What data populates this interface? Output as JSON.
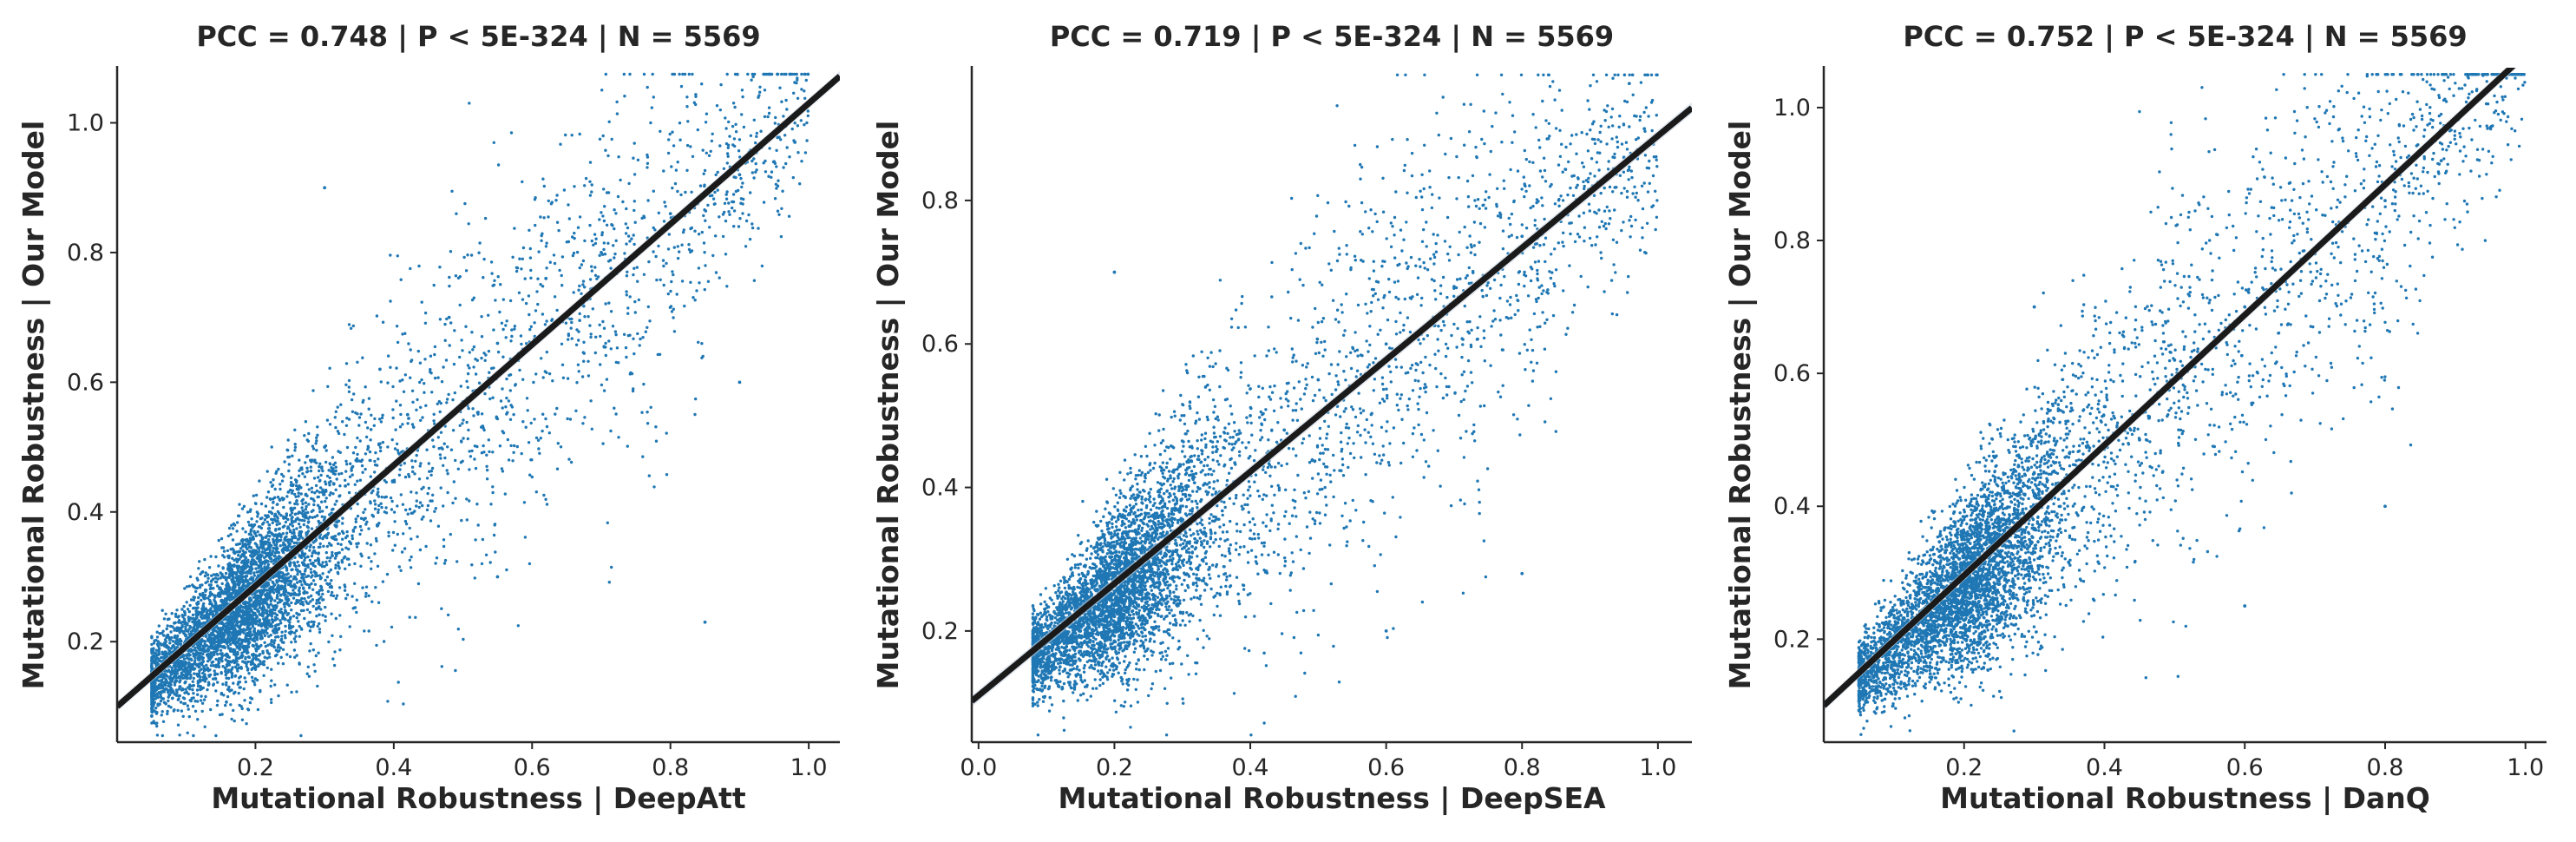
{
  "chart_data": [
    {
      "type": "scatter",
      "title": "PCC =  0.748 | P <  5E-324 | N = 5569",
      "xlabel": "Mutational Robustness | DeepAtt",
      "ylabel": "Mutational Robustness | Our Model",
      "xlim": [
        0.0,
        1.045
      ],
      "ylim": [
        0.045,
        1.085
      ],
      "xticks": [
        0.2,
        0.4,
        0.6,
        0.8,
        1.0
      ],
      "xtick_labels": [
        "0.2",
        "0.4",
        "0.6",
        "0.8",
        "1.0"
      ],
      "yticks": [
        0.2,
        0.4,
        0.6,
        0.8,
        1.0
      ],
      "ytick_labels": [
        "0.2",
        "0.4",
        "0.6",
        "0.8",
        "1.0"
      ],
      "grid": false,
      "point_color": "#1f77b4",
      "line_color": "#1a1a1a",
      "n_points": 5569,
      "pcc": 0.748,
      "regression": {
        "slope": 0.93,
        "intercept": 0.1
      },
      "x_distribution": {
        "min": 0.05,
        "max": 1.0,
        "mode": 0.16
      },
      "sample_points": [
        {
          "x": 0.1,
          "y": 0.15
        },
        {
          "x": 0.12,
          "y": 0.2
        },
        {
          "x": 0.14,
          "y": 0.18
        },
        {
          "x": 0.15,
          "y": 0.24
        },
        {
          "x": 0.16,
          "y": 0.17
        },
        {
          "x": 0.17,
          "y": 0.22
        },
        {
          "x": 0.18,
          "y": 0.3
        },
        {
          "x": 0.2,
          "y": 0.26
        },
        {
          "x": 0.22,
          "y": 0.38
        },
        {
          "x": 0.25,
          "y": 0.34
        },
        {
          "x": 0.3,
          "y": 0.5
        },
        {
          "x": 0.33,
          "y": 0.44
        },
        {
          "x": 0.38,
          "y": 0.62
        },
        {
          "x": 0.42,
          "y": 0.55
        },
        {
          "x": 0.48,
          "y": 0.7
        },
        {
          "x": 0.55,
          "y": 0.66
        },
        {
          "x": 0.62,
          "y": 0.76
        },
        {
          "x": 0.7,
          "y": 0.8
        },
        {
          "x": 0.8,
          "y": 0.86
        },
        {
          "x": 0.9,
          "y": 0.92
        },
        {
          "x": 0.95,
          "y": 0.94
        },
        {
          "x": 0.98,
          "y": 0.97
        },
        {
          "x": 0.55,
          "y": 0.3
        },
        {
          "x": 0.9,
          "y": 0.6
        },
        {
          "x": 0.85,
          "y": 0.23
        },
        {
          "x": 0.3,
          "y": 0.9
        }
      ]
    },
    {
      "type": "scatter",
      "title": "PCC =  0.719 | P <  5E-324 | N = 5569",
      "xlabel": "Mutational Robustness | DeepSEA",
      "ylabel": "Mutational Robustness | Our Model",
      "xlim": [
        -0.01,
        1.05
      ],
      "ylim": [
        0.045,
        0.985
      ],
      "xticks": [
        0.0,
        0.2,
        0.4,
        0.6,
        0.8,
        1.0
      ],
      "xtick_labels": [
        "0.0",
        "0.2",
        "0.4",
        "0.6",
        "0.8",
        "1.0"
      ],
      "yticks": [
        0.2,
        0.4,
        0.6,
        0.8
      ],
      "ytick_labels": [
        "0.2",
        "0.4",
        "0.6",
        "0.8"
      ],
      "grid": false,
      "point_color": "#1f77b4",
      "line_color": "#1a1a1a",
      "n_points": 5569,
      "pcc": 0.719,
      "regression": {
        "slope": 0.78,
        "intercept": 0.11
      },
      "x_distribution": {
        "min": 0.08,
        "max": 1.0,
        "mode": 0.18
      },
      "sample_points": [
        {
          "x": 0.12,
          "y": 0.15
        },
        {
          "x": 0.15,
          "y": 0.2
        },
        {
          "x": 0.17,
          "y": 0.18
        },
        {
          "x": 0.18,
          "y": 0.26
        },
        {
          "x": 0.2,
          "y": 0.22
        },
        {
          "x": 0.22,
          "y": 0.33
        },
        {
          "x": 0.25,
          "y": 0.3
        },
        {
          "x": 0.3,
          "y": 0.4
        },
        {
          "x": 0.35,
          "y": 0.45
        },
        {
          "x": 0.4,
          "y": 0.5
        },
        {
          "x": 0.45,
          "y": 0.48
        },
        {
          "x": 0.5,
          "y": 0.55
        },
        {
          "x": 0.6,
          "y": 0.6
        },
        {
          "x": 0.7,
          "y": 0.68
        },
        {
          "x": 0.8,
          "y": 0.75
        },
        {
          "x": 0.88,
          "y": 0.8
        },
        {
          "x": 0.95,
          "y": 0.86
        },
        {
          "x": 0.98,
          "y": 0.9
        },
        {
          "x": 0.2,
          "y": 0.7
        },
        {
          "x": 0.8,
          "y": 0.28
        },
        {
          "x": 0.6,
          "y": 0.2
        }
      ]
    },
    {
      "type": "scatter",
      "title": "PCC =  0.752 | P <  5E-324 | N = 5569",
      "xlabel": "Mutational Robustness | DanQ",
      "ylabel": "Mutational Robustness | Our Model",
      "xlim": [
        0.0,
        1.03
      ],
      "ylim": [
        0.045,
        1.06
      ],
      "xticks": [
        0.2,
        0.4,
        0.6,
        0.8,
        1.0
      ],
      "xtick_labels": [
        "0.2",
        "0.4",
        "0.6",
        "0.8",
        "1.0"
      ],
      "yticks": [
        0.2,
        0.4,
        0.6,
        0.8,
        1.0
      ],
      "ytick_labels": [
        "0.2",
        "0.4",
        "0.6",
        "0.8",
        "1.0"
      ],
      "grid": false,
      "point_color": "#1f77b4",
      "line_color": "#1a1a1a",
      "n_points": 5569,
      "pcc": 0.752,
      "regression": {
        "slope": 0.98,
        "intercept": 0.1
      },
      "x_distribution": {
        "min": 0.05,
        "max": 1.0,
        "mode": 0.18
      },
      "sample_points": [
        {
          "x": 0.12,
          "y": 0.15
        },
        {
          "x": 0.14,
          "y": 0.2
        },
        {
          "x": 0.16,
          "y": 0.18
        },
        {
          "x": 0.18,
          "y": 0.26
        },
        {
          "x": 0.2,
          "y": 0.22
        },
        {
          "x": 0.22,
          "y": 0.33
        },
        {
          "x": 0.25,
          "y": 0.3
        },
        {
          "x": 0.3,
          "y": 0.45
        },
        {
          "x": 0.35,
          "y": 0.48
        },
        {
          "x": 0.4,
          "y": 0.55
        },
        {
          "x": 0.45,
          "y": 0.5
        },
        {
          "x": 0.5,
          "y": 0.62
        },
        {
          "x": 0.6,
          "y": 0.7
        },
        {
          "x": 0.7,
          "y": 0.78
        },
        {
          "x": 0.8,
          "y": 0.86
        },
        {
          "x": 0.88,
          "y": 0.92
        },
        {
          "x": 0.95,
          "y": 0.97
        },
        {
          "x": 0.3,
          "y": 0.7
        },
        {
          "x": 0.8,
          "y": 0.4
        },
        {
          "x": 0.6,
          "y": 0.25
        }
      ]
    }
  ]
}
